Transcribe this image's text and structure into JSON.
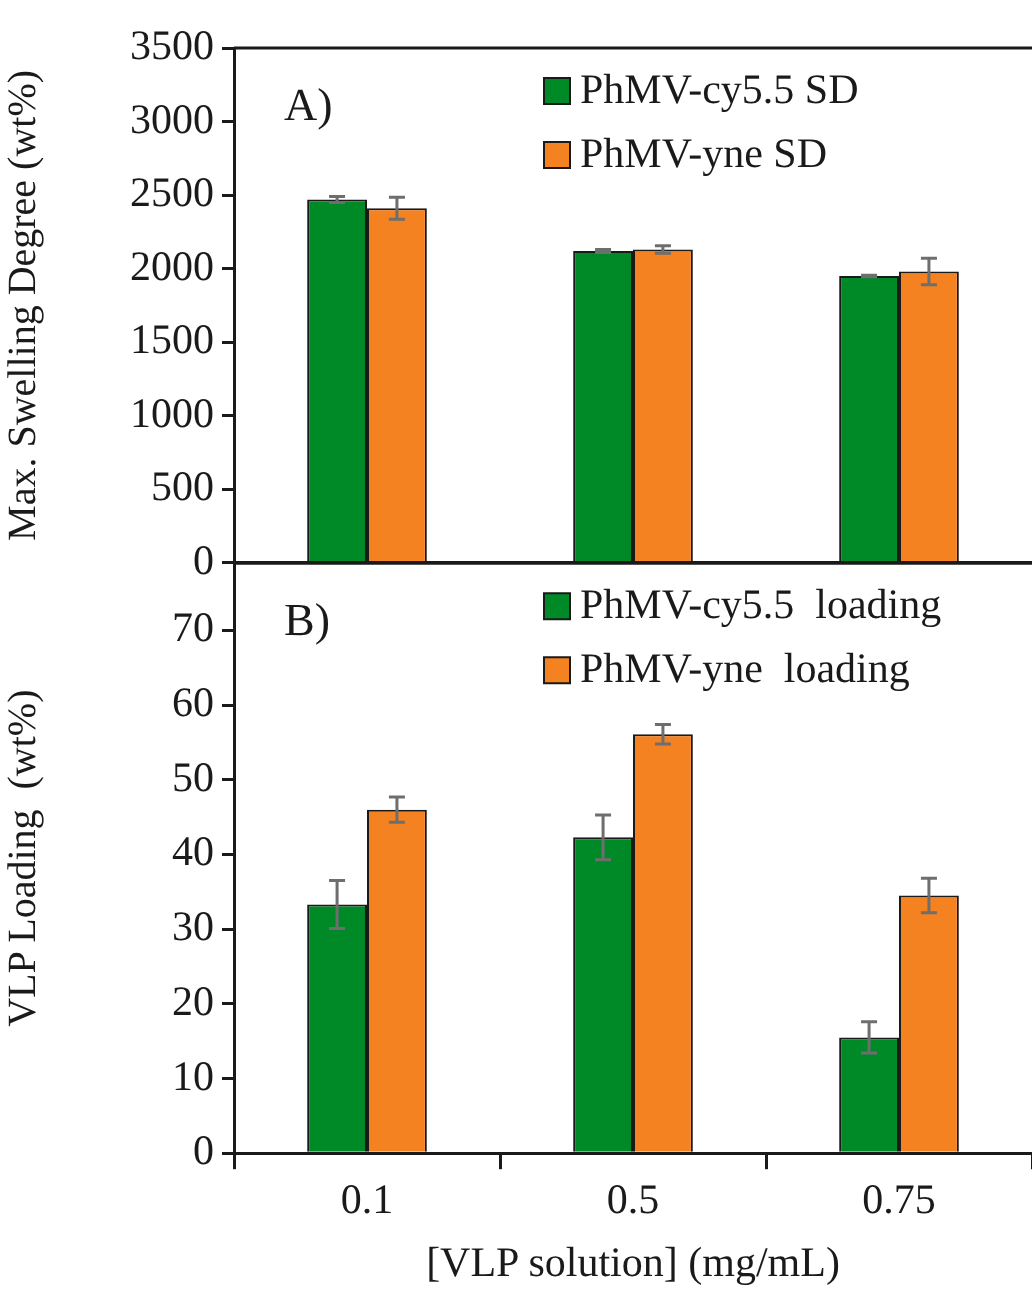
{
  "chart_data": [
    {
      "type": "bar",
      "categories": [
        "0.1",
        "0.5",
        "0.75"
      ],
      "ylabel": "Max. Swelling Degree (wt%)",
      "ylim": [
        0,
        3500
      ],
      "yticks": [
        0,
        500,
        1000,
        1500,
        2000,
        2500,
        3000,
        3500
      ],
      "tick_labels": "y",
      "legend": "top right",
      "grid": false,
      "annotations": [
        "A)"
      ],
      "series": [
        {
          "name": "PhMV-cy5.5 SD",
          "color": "#008a27",
          "values": [
            2470,
            2120,
            1950
          ],
          "errors": [
            20,
            10,
            5
          ]
        },
        {
          "name": "PhMV-yne SD",
          "color": "#f58220",
          "values": [
            2410,
            2130,
            1980
          ],
          "errors": [
            75,
            25,
            90
          ]
        }
      ]
    },
    {
      "type": "bar",
      "categories": [
        "0.1",
        "0.5",
        "0.75"
      ],
      "xlabel": "[VLP solution] (mg/mL)",
      "ylabel": "VLP Loading  (wt%)",
      "ylim": [
        0,
        79
      ],
      "yticks": [
        0,
        10,
        20,
        30,
        40,
        50,
        60,
        70
      ],
      "legend": "top right",
      "grid": false,
      "annotations": [
        "B)"
      ],
      "series": [
        {
          "name": "PhMV-cy5.5  loading",
          "color": "#008a27",
          "values": [
            33.3,
            42.3,
            15.5
          ],
          "errors": [
            3.2,
            3,
            2.1
          ]
        },
        {
          "name": "PhMV-yne  loading",
          "color": "#f58220",
          "values": [
            46,
            56.1,
            34.5
          ],
          "errors": [
            1.7,
            1.3,
            2.3
          ]
        }
      ]
    }
  ]
}
